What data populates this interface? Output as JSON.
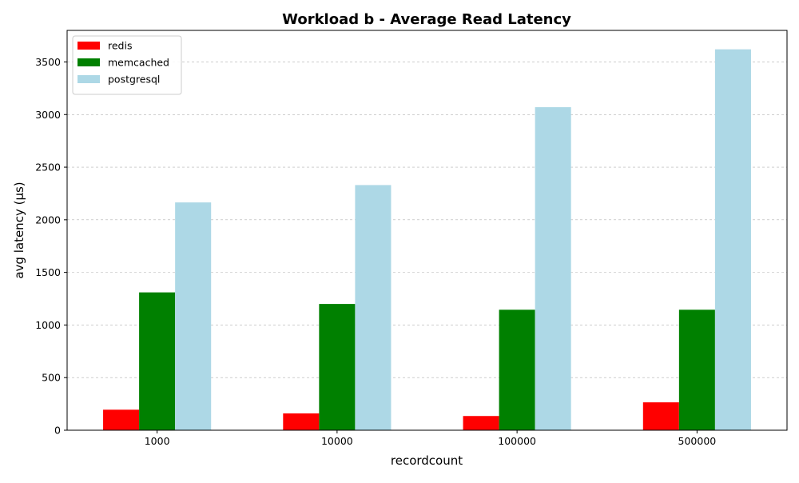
{
  "chart_data": {
    "type": "bar",
    "title": "Workload b - Average Read Latency",
    "xlabel": "recordcount",
    "ylabel": "avg latency (µs)",
    "categories": [
      "1000",
      "10000",
      "100000",
      "500000"
    ],
    "series": [
      {
        "name": "redis",
        "color": "#ff0000",
        "values": [
          195,
          160,
          135,
          265
        ]
      },
      {
        "name": "memcached",
        "color": "#008000",
        "values": [
          1310,
          1200,
          1145,
          1145
        ]
      },
      {
        "name": "postgresql",
        "color": "#add8e6",
        "values": [
          2165,
          2330,
          3070,
          3620
        ]
      }
    ],
    "ylim": [
      0,
      3800
    ],
    "yticks": [
      0,
      500,
      1000,
      1500,
      2000,
      2500,
      3000,
      3500
    ],
    "grid": "y-dashed",
    "legend_position": "top-left"
  }
}
